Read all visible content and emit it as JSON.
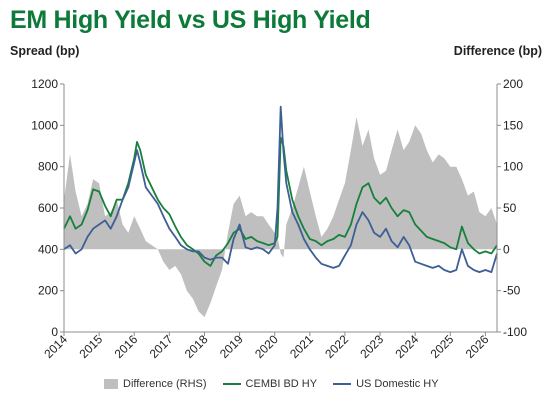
{
  "chart_data": {
    "type": "line",
    "title": "EM High Yield vs US High Yield",
    "ylabel": "Spread (bp)",
    "y2label": "Difference (bp)",
    "ylim": [
      0,
      1200
    ],
    "y2lim": [
      -100,
      200
    ],
    "yticks": [
      0,
      200,
      400,
      600,
      800,
      1000,
      1200
    ],
    "y2ticks": [
      -100,
      -50,
      0,
      50,
      100,
      150,
      200
    ],
    "xlim": [
      2014.0,
      2026.33
    ],
    "xticks": [
      2014,
      2015,
      2016,
      2017,
      2018,
      2019,
      2020,
      2021,
      2022,
      2023,
      2024,
      2025,
      2026
    ],
    "series": [
      {
        "name": "Difference (RHS)",
        "kind": "area",
        "axis": "right",
        "color": "#bfbfbf",
        "points": [
          [
            2014.0,
            60
          ],
          [
            2014.17,
            115
          ],
          [
            2014.33,
            70
          ],
          [
            2014.5,
            40
          ],
          [
            2014.67,
            55
          ],
          [
            2014.83,
            85
          ],
          [
            2015.0,
            80
          ],
          [
            2015.17,
            40
          ],
          [
            2015.33,
            45
          ],
          [
            2015.5,
            60
          ],
          [
            2015.67,
            30
          ],
          [
            2015.83,
            20
          ],
          [
            2016.0,
            40
          ],
          [
            2016.17,
            25
          ],
          [
            2016.33,
            10
          ],
          [
            2016.5,
            5
          ],
          [
            2016.67,
            0
          ],
          [
            2016.83,
            -15
          ],
          [
            2017.0,
            -25
          ],
          [
            2017.17,
            -20
          ],
          [
            2017.33,
            -30
          ],
          [
            2017.5,
            -50
          ],
          [
            2017.67,
            -60
          ],
          [
            2017.83,
            -75
          ],
          [
            2018.0,
            -82
          ],
          [
            2018.17,
            -65
          ],
          [
            2018.33,
            -45
          ],
          [
            2018.5,
            -25
          ],
          [
            2018.67,
            20
          ],
          [
            2018.83,
            55
          ],
          [
            2019.0,
            65
          ],
          [
            2019.17,
            40
          ],
          [
            2019.33,
            45
          ],
          [
            2019.5,
            40
          ],
          [
            2019.67,
            40
          ],
          [
            2019.83,
            30
          ],
          [
            2020.0,
            20
          ],
          [
            2020.08,
            15
          ],
          [
            2020.17,
            -5
          ],
          [
            2020.25,
            -10
          ],
          [
            2020.33,
            30
          ],
          [
            2020.5,
            50
          ],
          [
            2020.67,
            75
          ],
          [
            2020.83,
            100
          ],
          [
            2021.0,
            70
          ],
          [
            2021.17,
            40
          ],
          [
            2021.33,
            15
          ],
          [
            2021.5,
            25
          ],
          [
            2021.67,
            40
          ],
          [
            2021.83,
            60
          ],
          [
            2022.0,
            80
          ],
          [
            2022.17,
            120
          ],
          [
            2022.33,
            160
          ],
          [
            2022.5,
            125
          ],
          [
            2022.67,
            145
          ],
          [
            2022.83,
            110
          ],
          [
            2023.0,
            90
          ],
          [
            2023.17,
            95
          ],
          [
            2023.33,
            120
          ],
          [
            2023.5,
            145
          ],
          [
            2023.67,
            120
          ],
          [
            2023.83,
            130
          ],
          [
            2024.0,
            150
          ],
          [
            2024.17,
            140
          ],
          [
            2024.33,
            120
          ],
          [
            2024.5,
            105
          ],
          [
            2024.67,
            115
          ],
          [
            2024.83,
            110
          ],
          [
            2025.0,
            100
          ],
          [
            2025.17,
            100
          ],
          [
            2025.33,
            85
          ],
          [
            2025.5,
            65
          ],
          [
            2025.67,
            70
          ],
          [
            2025.83,
            45
          ],
          [
            2026.0,
            40
          ],
          [
            2026.17,
            50
          ],
          [
            2026.33,
            30
          ]
        ]
      },
      {
        "name": "CEMBI BD HY",
        "kind": "line",
        "axis": "left",
        "color": "#17803d",
        "points": [
          [
            2014.0,
            500
          ],
          [
            2014.17,
            560
          ],
          [
            2014.33,
            500
          ],
          [
            2014.5,
            520
          ],
          [
            2014.67,
            590
          ],
          [
            2014.83,
            690
          ],
          [
            2015.0,
            680
          ],
          [
            2015.17,
            610
          ],
          [
            2015.33,
            560
          ],
          [
            2015.5,
            640
          ],
          [
            2015.67,
            640
          ],
          [
            2015.83,
            720
          ],
          [
            2016.0,
            840
          ],
          [
            2016.08,
            920
          ],
          [
            2016.17,
            880
          ],
          [
            2016.33,
            760
          ],
          [
            2016.5,
            700
          ],
          [
            2016.67,
            640
          ],
          [
            2016.83,
            600
          ],
          [
            2017.0,
            570
          ],
          [
            2017.17,
            510
          ],
          [
            2017.33,
            460
          ],
          [
            2017.5,
            420
          ],
          [
            2017.67,
            400
          ],
          [
            2017.83,
            380
          ],
          [
            2018.0,
            340
          ],
          [
            2018.17,
            320
          ],
          [
            2018.33,
            370
          ],
          [
            2018.5,
            390
          ],
          [
            2018.67,
            430
          ],
          [
            2018.83,
            480
          ],
          [
            2019.0,
            500
          ],
          [
            2019.17,
            450
          ],
          [
            2019.33,
            460
          ],
          [
            2019.5,
            440
          ],
          [
            2019.67,
            430
          ],
          [
            2019.83,
            420
          ],
          [
            2020.0,
            430
          ],
          [
            2020.08,
            460
          ],
          [
            2020.17,
            940
          ],
          [
            2020.25,
            900
          ],
          [
            2020.33,
            780
          ],
          [
            2020.5,
            640
          ],
          [
            2020.67,
            560
          ],
          [
            2020.83,
            500
          ],
          [
            2021.0,
            450
          ],
          [
            2021.17,
            440
          ],
          [
            2021.33,
            420
          ],
          [
            2021.5,
            440
          ],
          [
            2021.67,
            450
          ],
          [
            2021.83,
            470
          ],
          [
            2022.0,
            460
          ],
          [
            2022.17,
            520
          ],
          [
            2022.33,
            620
          ],
          [
            2022.5,
            700
          ],
          [
            2022.67,
            720
          ],
          [
            2022.83,
            650
          ],
          [
            2023.0,
            620
          ],
          [
            2023.17,
            650
          ],
          [
            2023.33,
            600
          ],
          [
            2023.5,
            560
          ],
          [
            2023.67,
            590
          ],
          [
            2023.83,
            580
          ],
          [
            2024.0,
            520
          ],
          [
            2024.17,
            490
          ],
          [
            2024.33,
            460
          ],
          [
            2024.5,
            450
          ],
          [
            2024.67,
            440
          ],
          [
            2024.83,
            430
          ],
          [
            2025.0,
            410
          ],
          [
            2025.17,
            400
          ],
          [
            2025.33,
            510
          ],
          [
            2025.5,
            430
          ],
          [
            2025.67,
            400
          ],
          [
            2025.83,
            380
          ],
          [
            2026.0,
            390
          ],
          [
            2026.17,
            380
          ],
          [
            2026.33,
            420
          ]
        ]
      },
      {
        "name": "US Domestic HY",
        "kind": "line",
        "axis": "left",
        "color": "#3d5f94",
        "points": [
          [
            2014.0,
            400
          ],
          [
            2014.17,
            420
          ],
          [
            2014.33,
            380
          ],
          [
            2014.5,
            400
          ],
          [
            2014.67,
            460
          ],
          [
            2014.83,
            500
          ],
          [
            2015.0,
            520
          ],
          [
            2015.17,
            540
          ],
          [
            2015.33,
            500
          ],
          [
            2015.5,
            560
          ],
          [
            2015.67,
            640
          ],
          [
            2015.83,
            700
          ],
          [
            2016.0,
            820
          ],
          [
            2016.08,
            880
          ],
          [
            2016.17,
            820
          ],
          [
            2016.33,
            700
          ],
          [
            2016.5,
            660
          ],
          [
            2016.67,
            620
          ],
          [
            2016.83,
            560
          ],
          [
            2017.0,
            500
          ],
          [
            2017.17,
            460
          ],
          [
            2017.33,
            420
          ],
          [
            2017.5,
            400
          ],
          [
            2017.67,
            390
          ],
          [
            2017.83,
            390
          ],
          [
            2018.0,
            360
          ],
          [
            2018.17,
            350
          ],
          [
            2018.33,
            360
          ],
          [
            2018.5,
            360
          ],
          [
            2018.67,
            330
          ],
          [
            2018.83,
            450
          ],
          [
            2019.0,
            520
          ],
          [
            2019.17,
            410
          ],
          [
            2019.33,
            400
          ],
          [
            2019.5,
            410
          ],
          [
            2019.67,
            400
          ],
          [
            2019.83,
            380
          ],
          [
            2020.0,
            420
          ],
          [
            2020.08,
            600
          ],
          [
            2020.17,
            1090
          ],
          [
            2020.25,
            870
          ],
          [
            2020.33,
            720
          ],
          [
            2020.5,
            580
          ],
          [
            2020.67,
            520
          ],
          [
            2020.83,
            450
          ],
          [
            2021.0,
            400
          ],
          [
            2021.17,
            360
          ],
          [
            2021.33,
            330
          ],
          [
            2021.5,
            320
          ],
          [
            2021.67,
            310
          ],
          [
            2021.83,
            320
          ],
          [
            2022.0,
            370
          ],
          [
            2022.17,
            420
          ],
          [
            2022.33,
            520
          ],
          [
            2022.5,
            580
          ],
          [
            2022.67,
            540
          ],
          [
            2022.83,
            480
          ],
          [
            2023.0,
            460
          ],
          [
            2023.17,
            500
          ],
          [
            2023.33,
            440
          ],
          [
            2023.5,
            410
          ],
          [
            2023.67,
            460
          ],
          [
            2023.83,
            420
          ],
          [
            2024.0,
            340
          ],
          [
            2024.17,
            330
          ],
          [
            2024.33,
            320
          ],
          [
            2024.5,
            310
          ],
          [
            2024.67,
            320
          ],
          [
            2024.83,
            300
          ],
          [
            2025.0,
            290
          ],
          [
            2025.17,
            300
          ],
          [
            2025.33,
            400
          ],
          [
            2025.5,
            320
          ],
          [
            2025.67,
            300
          ],
          [
            2025.83,
            290
          ],
          [
            2026.0,
            300
          ],
          [
            2026.17,
            290
          ],
          [
            2026.33,
            380
          ]
        ]
      }
    ],
    "legend": [
      "Difference (RHS)",
      "CEMBI BD HY",
      "US Domestic HY"
    ],
    "legend_position": "bottom",
    "grid": false
  }
}
